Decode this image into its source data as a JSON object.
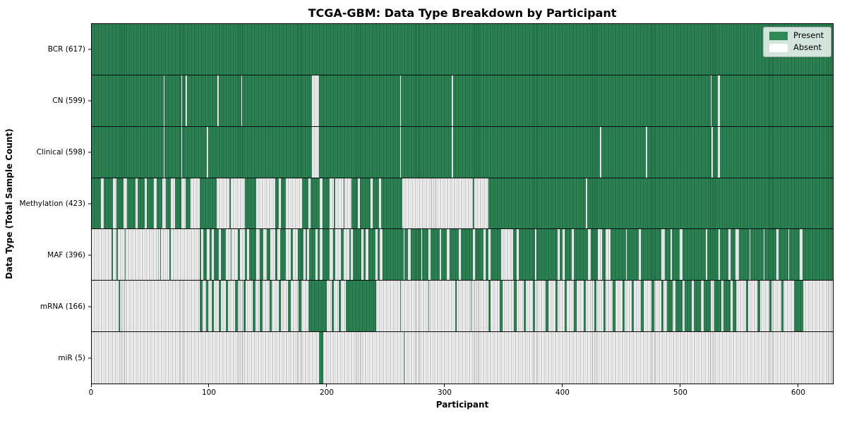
{
  "title": "TCGA-GBM: Data Type Breakdown by Participant",
  "legend": {
    "present": "Present",
    "absent": "Absent"
  },
  "chart_data": {
    "type": "heatmap",
    "title": "TCGA-GBM: Data Type Breakdown by Participant",
    "xlabel": "Participant",
    "ylabel": "Data Type (Total Sample Count)",
    "legend": [
      "Present",
      "Absent"
    ],
    "legend_position": "upper right",
    "colors": {
      "present": "#2E8B57",
      "present_stripe": "#1c5a39",
      "absent": "#FFFFFF",
      "absent_stripe": "#A0A0A0"
    },
    "x_ticks": [
      0,
      100,
      200,
      300,
      400,
      500,
      600
    ],
    "x_max": 630,
    "grid": "row-separators",
    "rows": [
      {
        "label": "BCR",
        "total": 617,
        "display": "BCR (617)",
        "base": "present",
        "runs_state": "absent",
        "runs": []
      },
      {
        "label": "CN",
        "total": 599,
        "display": "CN (599)",
        "base": "present",
        "runs_state": "absent",
        "runs": [
          [
            61,
            62
          ],
          [
            76,
            77
          ],
          [
            80,
            81
          ],
          [
            107,
            108
          ],
          [
            127,
            128
          ],
          [
            187,
            193
          ],
          [
            262,
            263
          ],
          [
            306,
            307
          ],
          [
            526,
            527
          ],
          [
            532,
            534
          ]
        ]
      },
      {
        "label": "Clinical",
        "total": 598,
        "display": "Clinical (598)",
        "base": "present",
        "runs_state": "absent",
        "runs": [
          [
            61,
            62
          ],
          [
            76,
            77
          ],
          [
            98,
            99
          ],
          [
            187,
            193
          ],
          [
            262,
            263
          ],
          [
            306,
            307
          ],
          [
            432,
            433
          ],
          [
            471,
            472
          ],
          [
            527,
            528
          ],
          [
            532,
            534
          ]
        ]
      },
      {
        "label": "Methylation",
        "total": 423,
        "display": "Methylation (423)",
        "base": "present",
        "runs_state": "absent",
        "runs": [
          [
            8,
            10
          ],
          [
            18,
            21
          ],
          [
            27,
            30
          ],
          [
            37,
            39
          ],
          [
            45,
            47
          ],
          [
            53,
            55
          ],
          [
            60,
            63
          ],
          [
            67,
            71
          ],
          [
            76,
            80
          ],
          [
            84,
            92
          ],
          [
            106,
            117
          ],
          [
            118,
            130
          ],
          [
            140,
            156
          ],
          [
            159,
            161
          ],
          [
            165,
            179
          ],
          [
            184,
            186
          ],
          [
            194,
            196
          ],
          [
            202,
            206
          ],
          [
            207,
            214
          ],
          [
            215,
            221
          ],
          [
            226,
            228
          ],
          [
            237,
            239
          ],
          [
            244,
            246
          ],
          [
            264,
            324
          ],
          [
            325,
            337
          ],
          [
            420,
            421
          ]
        ]
      },
      {
        "label": "MAF",
        "total": 396,
        "display": "MAF (396)",
        "base": "present",
        "runs_state": "absent",
        "runs": [
          [
            0,
            17
          ],
          [
            18,
            21
          ],
          [
            22,
            28
          ],
          [
            29,
            58
          ],
          [
            59,
            66
          ],
          [
            67,
            92
          ],
          [
            93,
            95
          ],
          [
            98,
            100
          ],
          [
            102,
            104
          ],
          [
            108,
            110
          ],
          [
            114,
            118
          ],
          [
            119,
            124
          ],
          [
            126,
            130
          ],
          [
            132,
            134
          ],
          [
            140,
            143
          ],
          [
            146,
            149
          ],
          [
            152,
            156
          ],
          [
            158,
            160
          ],
          [
            165,
            169
          ],
          [
            171,
            175
          ],
          [
            180,
            182
          ],
          [
            183,
            185
          ],
          [
            190,
            192
          ],
          [
            194,
            196
          ],
          [
            202,
            205
          ],
          [
            207,
            212
          ],
          [
            214,
            219
          ],
          [
            220,
            222
          ],
          [
            229,
            231
          ],
          [
            233,
            235
          ],
          [
            241,
            243
          ],
          [
            245,
            247
          ],
          [
            265,
            266
          ],
          [
            269,
            271
          ],
          [
            280,
            281
          ],
          [
            286,
            288
          ],
          [
            296,
            297
          ],
          [
            302,
            304
          ],
          [
            312,
            314
          ],
          [
            324,
            326
          ],
          [
            333,
            335
          ],
          [
            337,
            339
          ],
          [
            348,
            358
          ],
          [
            361,
            363
          ],
          [
            377,
            378
          ],
          [
            396,
            398
          ],
          [
            400,
            402
          ],
          [
            408,
            410
          ],
          [
            422,
            424
          ],
          [
            430,
            434
          ],
          [
            437,
            441
          ],
          [
            454,
            455
          ],
          [
            465,
            467
          ],
          [
            484,
            487
          ],
          [
            492,
            493
          ],
          [
            500,
            502
          ],
          [
            522,
            523
          ],
          [
            533,
            534
          ],
          [
            541,
            543
          ],
          [
            547,
            550
          ],
          [
            559,
            560
          ],
          [
            571,
            572
          ],
          [
            582,
            584
          ],
          [
            592,
            593
          ],
          [
            602,
            604
          ]
        ]
      },
      {
        "label": "mRNA",
        "total": 166,
        "display": "mRNA (166)",
        "base": "absent",
        "runs_state": "present",
        "runs": [
          [
            23,
            24
          ],
          [
            92,
            94
          ],
          [
            97,
            99
          ],
          [
            102,
            104
          ],
          [
            108,
            110
          ],
          [
            114,
            116
          ],
          [
            122,
            124
          ],
          [
            129,
            131
          ],
          [
            137,
            139
          ],
          [
            143,
            145
          ],
          [
            151,
            153
          ],
          [
            159,
            161
          ],
          [
            167,
            169
          ],
          [
            176,
            178
          ],
          [
            184,
            200
          ],
          [
            204,
            206
          ],
          [
            210,
            212
          ],
          [
            216,
            242
          ],
          [
            262,
            263
          ],
          [
            286,
            287
          ],
          [
            309,
            310
          ],
          [
            322,
            323
          ],
          [
            337,
            339
          ],
          [
            347,
            349
          ],
          [
            359,
            361
          ],
          [
            367,
            369
          ],
          [
            375,
            377
          ],
          [
            386,
            388
          ],
          [
            394,
            396
          ],
          [
            402,
            404
          ],
          [
            410,
            412
          ],
          [
            418,
            420
          ],
          [
            427,
            429
          ],
          [
            435,
            437
          ],
          [
            443,
            445
          ],
          [
            451,
            453
          ],
          [
            459,
            461
          ],
          [
            467,
            469
          ],
          [
            476,
            478
          ],
          [
            484,
            486
          ],
          [
            489,
            494
          ],
          [
            496,
            502
          ],
          [
            504,
            510
          ],
          [
            512,
            518
          ],
          [
            520,
            526
          ],
          [
            529,
            535
          ],
          [
            537,
            543
          ],
          [
            545,
            548
          ],
          [
            556,
            558
          ],
          [
            566,
            568
          ],
          [
            576,
            578
          ],
          [
            586,
            588
          ],
          [
            597,
            605
          ]
        ]
      },
      {
        "label": "miR",
        "total": 5,
        "display": "miR (5)",
        "base": "absent",
        "runs_state": "present",
        "runs": [
          [
            193,
            197
          ],
          [
            265,
            266
          ]
        ]
      }
    ]
  }
}
